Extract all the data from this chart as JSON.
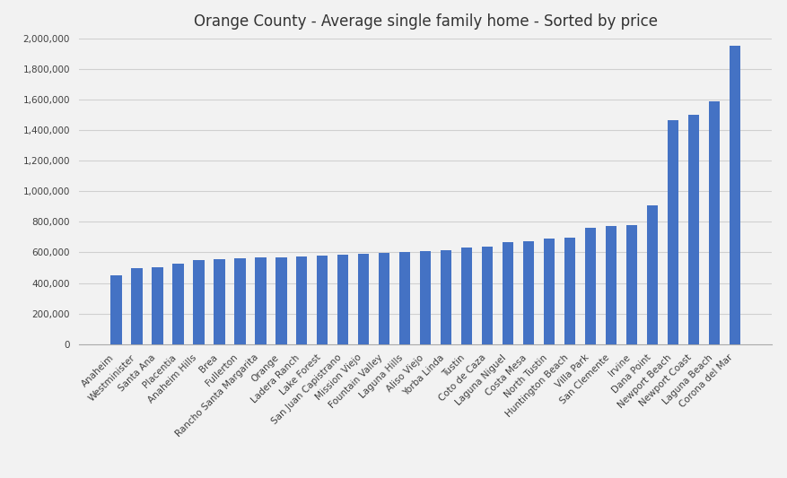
{
  "title": "Orange County - Average single family home - Sorted by price",
  "categories": [
    "Anaheim",
    "Westminister",
    "Santa Ana",
    "Placentia",
    "Anaheim Hills",
    "Brea",
    "Fullerton",
    "Rancho Santa Margarita",
    "Orange",
    "Ladera Ranch",
    "Lake Forest",
    "San Juan Capistrano",
    "Mission Viejo",
    "Fountain Valley",
    "Laguna Hills",
    "Aliso Viejo",
    "Yorba Linda",
    "Tustin",
    "Coto de Caza",
    "Laguna Niguel",
    "Costa Mesa",
    "North Tustin",
    "Huntington Beach",
    "Villa Park",
    "San Clemente",
    "Irvine",
    "Dana Point",
    "Newport Beach",
    "Newport Coast",
    "Laguna Beach",
    "Corona del Mar"
  ],
  "values": [
    450000,
    495000,
    500000,
    525000,
    550000,
    555000,
    560000,
    565000,
    570000,
    575000,
    580000,
    585000,
    590000,
    595000,
    605000,
    610000,
    615000,
    630000,
    635000,
    665000,
    670000,
    690000,
    695000,
    760000,
    775000,
    780000,
    910000,
    1465000,
    1500000,
    1590000,
    1950000
  ],
  "bar_color": "#4472C4",
  "background_color": "#f2f2f2",
  "ylim": [
    0,
    2000000
  ],
  "yticks": [
    0,
    200000,
    400000,
    600000,
    800000,
    1000000,
    1200000,
    1400000,
    1600000,
    1800000,
    2000000
  ],
  "title_fontsize": 12,
  "tick_label_fontsize": 7.5,
  "bar_width": 0.55
}
